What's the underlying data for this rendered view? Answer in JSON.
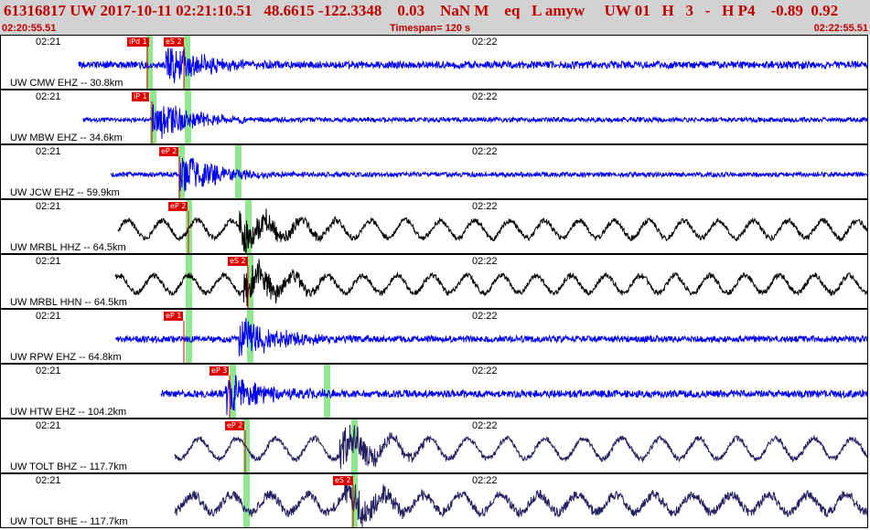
{
  "header": {
    "title": "61316817 UW 2017-10-11 02:21:10.51   48.6615 -122.3348    0.03    NaN M    eq   L amyw     UW 01   H   3   -   H P4    -0.89  0.92",
    "start_time": "02:20:55.51",
    "timespan": "Timespan= 120 s",
    "end_time": "02:22:55.51"
  },
  "colors": {
    "blue": "#0000ee",
    "black": "#000000",
    "navy": "#232060",
    "pick": "#e00000",
    "window": "#8fe88f"
  },
  "tick_labels": [
    "02:21",
    "02:22"
  ],
  "traces": [
    {
      "label": "UW CMW EHZ -- 30.8km",
      "color": "blue",
      "picks": [
        "iPd 1",
        "eS 2"
      ],
      "amp": 8,
      "style": "micro"
    },
    {
      "label": "UW MBW EHZ -- 34.6km",
      "color": "blue",
      "picks": [
        "iP 1"
      ],
      "amp": 5,
      "style": "micro"
    },
    {
      "label": "UW JCW EHZ -- 59.9km",
      "color": "blue",
      "picks": [
        "eP 2"
      ],
      "amp": 5,
      "style": "micro"
    },
    {
      "label": "UW MRBL HHZ -- 64.5km",
      "color": "black",
      "picks": [
        "eP 2"
      ],
      "amp": 12,
      "style": "wave"
    },
    {
      "label": "UW MRBL HHN -- 64.5km",
      "color": "black",
      "picks": [
        "eS 2"
      ],
      "amp": 12,
      "style": "wave"
    },
    {
      "label": "UW RPW EHZ -- 64.8km",
      "color": "blue",
      "picks": [
        "eP 1"
      ],
      "amp": 7,
      "style": "micro"
    },
    {
      "label": "UW HTW EHZ -- 104.2km",
      "color": "blue",
      "picks": [
        "eP 3"
      ],
      "amp": 8,
      "style": "micro"
    },
    {
      "label": "UW TOLT BHZ -- 117.7km",
      "color": "navy",
      "picks": [
        "eP 2"
      ],
      "amp": 14,
      "style": "wave"
    },
    {
      "label": "UW TOLT BHE -- 117.7km",
      "color": "navy",
      "picks": [
        "eS 2"
      ],
      "amp": 12,
      "style": "wave"
    }
  ]
}
